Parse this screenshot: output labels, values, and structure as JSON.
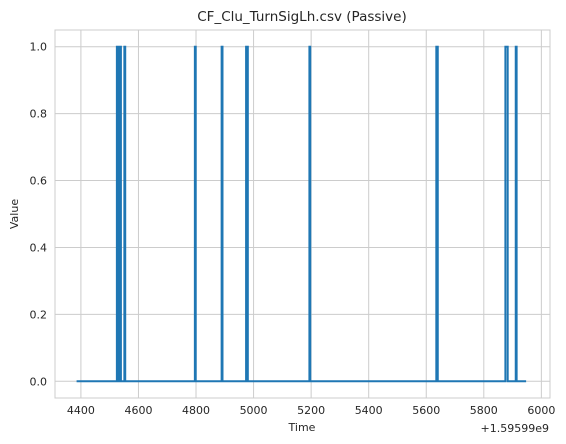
{
  "chart_data": {
    "type": "line",
    "title": "CF_Clu_TurnSigLh.csv (Passive)",
    "xlabel": "Time",
    "ylabel": "Value",
    "x_offset_label": "+1.59599e9",
    "x_offset": 1595990000,
    "xlim": [
      4310,
      6030
    ],
    "ylim": [
      -0.05,
      1.05
    ],
    "x_ticks": [
      4400,
      4600,
      4800,
      5000,
      5200,
      5400,
      5600,
      5800,
      6000
    ],
    "x_tick_labels": [
      "4400",
      "4600",
      "4800",
      "5000",
      "5200",
      "5400",
      "5600",
      "5800",
      "6000"
    ],
    "y_ticks": [
      0.0,
      0.2,
      0.4,
      0.6,
      0.8,
      1.0
    ],
    "y_tick_labels": [
      "0.0",
      "0.2",
      "0.4",
      "0.6",
      "0.8",
      "1.0"
    ],
    "grid": true,
    "series": [
      {
        "color": "#1f77b4",
        "x": [
          4385,
          4525,
          4525,
          4528,
          4528,
          4531,
          4531,
          4534,
          4534,
          4537,
          4537,
          4539,
          4539,
          4542,
          4542,
          4551,
          4551,
          4554,
          4554,
          4796,
          4796,
          4799,
          4799,
          4889,
          4889,
          4892,
          4892,
          4974,
          4974,
          4980,
          4980,
          5194,
          5194,
          5197,
          5197,
          5635,
          5635,
          5640,
          5640,
          5875,
          5875,
          5883,
          5883,
          5911,
          5911,
          5914,
          5914,
          5947
        ],
        "y": [
          0,
          0,
          1,
          1,
          0,
          0,
          1,
          1,
          0,
          0,
          1,
          1,
          0,
          0,
          0,
          0,
          1,
          1,
          0,
          0,
          1,
          1,
          0,
          0,
          1,
          1,
          0,
          0,
          1,
          1,
          0,
          0,
          1,
          1,
          0,
          0,
          1,
          1,
          0,
          0,
          1,
          1,
          0,
          0,
          1,
          1,
          0,
          0
        ]
      }
    ]
  }
}
